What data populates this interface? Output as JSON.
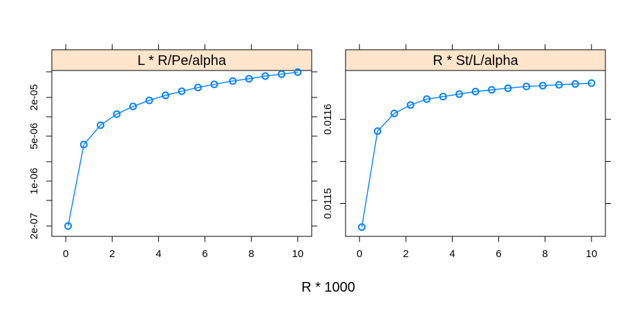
{
  "chart_data": {
    "type": "line",
    "xlabel": "R * 1000",
    "colors": {
      "series": "#0080ff",
      "strip": "#ffe5cc",
      "frame": "#000000"
    },
    "panels": [
      {
        "strip_title": "L * R/Pe/alpha",
        "y_scale": "log",
        "xlim": [
          -0.6,
          10.6
        ],
        "ylim_log10": [
          -6.86,
          -4.28
        ],
        "x_ticks": [
          0,
          2,
          4,
          6,
          8,
          10
        ],
        "x_tick_labels": [
          "0",
          "2",
          "4",
          "6",
          "8",
          "10"
        ],
        "y_ticks": [
          2e-07,
          5e-07,
          1e-06,
          2e-06,
          5e-06,
          1e-05,
          2e-05,
          5e-05
        ],
        "y_tick_labels": [
          "2e-07",
          "",
          "1e-06",
          "",
          "5e-06",
          "",
          "2e-05",
          ""
        ],
        "series": [
          {
            "x": [
              0.1,
              0.78,
              1.5,
              2.2,
              2.9,
              3.6,
              4.3,
              5.0,
              5.7,
              6.4,
              7.2,
              7.9,
              8.6,
              9.3,
              10.0
            ],
            "y": [
              2e-07,
              3.7e-06,
              7.4e-06,
              1.1e-05,
              1.45e-05,
              1.8e-05,
              2.15e-05,
              2.5e-05,
              2.85e-05,
              3.2e-05,
              3.6e-05,
              3.9e-05,
              4.3e-05,
              4.6e-05,
              4.95e-05
            ]
          }
        ]
      },
      {
        "strip_title": "R * St/L/alpha",
        "y_scale": "linear",
        "xlim": [
          -0.6,
          10.6
        ],
        "ylim": [
          0.011461,
          0.011658
        ],
        "x_ticks": [
          0,
          2,
          4,
          6,
          8,
          10
        ],
        "x_tick_labels": [
          "0",
          "2",
          "4",
          "6",
          "8",
          "10"
        ],
        "y_ticks": [
          0.0115,
          0.01155,
          0.0116
        ],
        "y_tick_labels": [
          "0.0115",
          "",
          "0.0116"
        ],
        "series": [
          {
            "x": [
              0.1,
              0.78,
              1.5,
              2.2,
              2.9,
              3.6,
              4.3,
              5.0,
              5.7,
              6.4,
              7.2,
              7.9,
              8.6,
              9.3,
              10.0
            ],
            "y": [
              0.011472,
              0.011586,
              0.011607,
              0.011617,
              0.011624,
              0.011627,
              0.01163,
              0.011633,
              0.011635,
              0.011637,
              0.011639,
              0.01164,
              0.011641,
              0.011642,
              0.011643
            ]
          }
        ]
      }
    ]
  }
}
